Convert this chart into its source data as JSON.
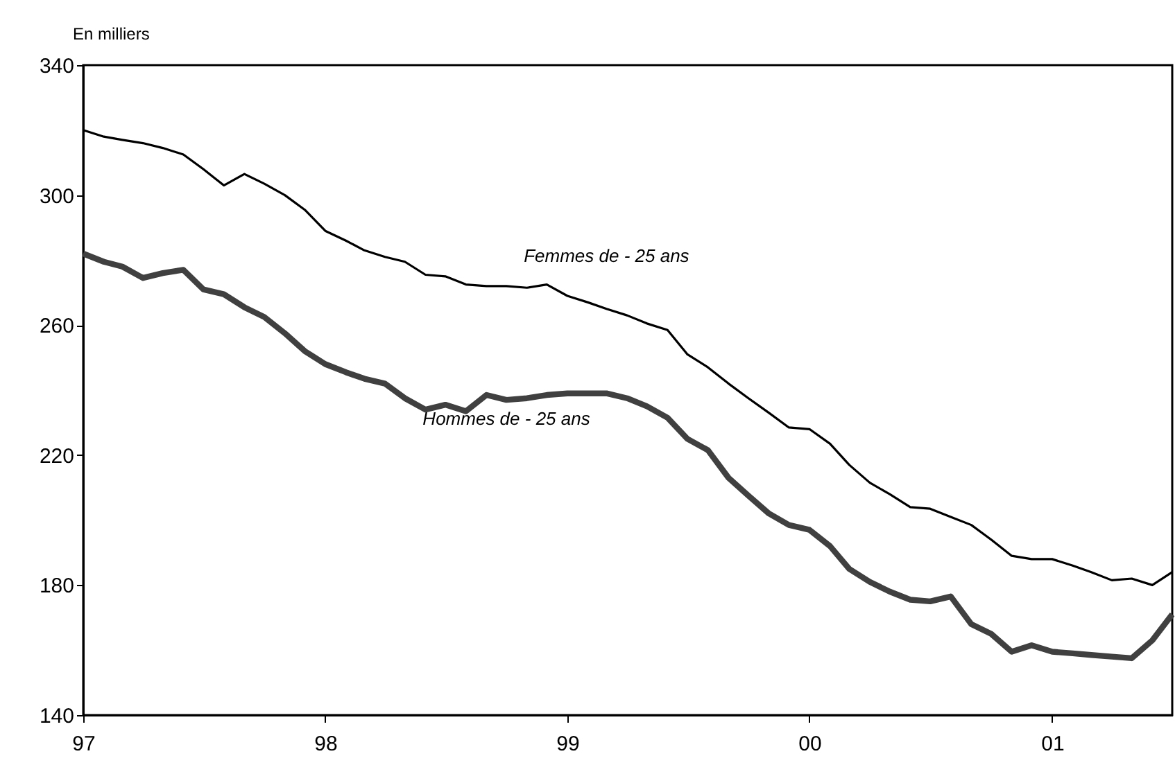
{
  "chart_data": {
    "type": "line",
    "ylabel": "En milliers",
    "x": [
      "1997-01",
      "1997-02",
      "1997-03",
      "1997-04",
      "1997-05",
      "1997-06",
      "1997-07",
      "1997-08",
      "1997-09",
      "1997-10",
      "1997-11",
      "1997-12",
      "1998-01",
      "1998-02",
      "1998-03",
      "1998-04",
      "1998-05",
      "1998-06",
      "1998-07",
      "1998-08",
      "1998-09",
      "1998-10",
      "1998-11",
      "1998-12",
      "1999-01",
      "1999-02",
      "1999-03",
      "1999-04",
      "1999-05",
      "1999-06",
      "1999-07",
      "1999-08",
      "1999-09",
      "1999-10",
      "1999-11",
      "1999-12",
      "2000-01",
      "2000-02",
      "2000-03",
      "2000-04",
      "2000-05",
      "2000-06",
      "2000-07",
      "2000-08",
      "2000-09",
      "2000-10",
      "2000-11",
      "2000-12",
      "2001-01",
      "2001-02",
      "2001-03",
      "2001-04",
      "2001-05",
      "2001-06",
      "2001-07"
    ],
    "series": [
      {
        "name": "Femmes de - 25 ans",
        "color": "#000000",
        "values": [
          320,
          318,
          317,
          316,
          314.5,
          312.5,
          308,
          303,
          306.5,
          303.5,
          300,
          295.5,
          289,
          286,
          283,
          281,
          279.5,
          275.5,
          275,
          272.5,
          272,
          272,
          271.5,
          272.5,
          269,
          267,
          265,
          263,
          260.5,
          258.5,
          251,
          247,
          242,
          237.5,
          233,
          228.5,
          228,
          223.5,
          217,
          211.5,
          208,
          204,
          203.5,
          201,
          198.5,
          194,
          189,
          188,
          188,
          186,
          184,
          181.5,
          182,
          180,
          184
        ]
      },
      {
        "name": "Hommes de - 25 ans",
        "color": "#404040",
        "values": [
          282,
          279.5,
          278,
          274.5,
          276,
          277,
          271,
          269.5,
          265.5,
          262.5,
          257.5,
          252,
          248,
          245.5,
          243.5,
          242,
          237.5,
          234,
          235.5,
          233.5,
          238.5,
          237,
          237.5,
          238.5,
          239,
          239,
          239,
          237.5,
          235,
          231.5,
          225,
          221.5,
          213,
          207.5,
          202,
          198.5,
          197,
          192,
          185,
          181,
          178,
          175.5,
          175,
          176.5,
          168,
          165,
          159.5,
          161.5,
          159.5,
          159,
          158.5,
          158,
          157.5,
          163,
          171
        ]
      }
    ],
    "xlim": [
      "1997-01",
      "2001-07"
    ],
    "xticks": [
      {
        "value": "1997-01",
        "label": "97"
      },
      {
        "value": "1998-01",
        "label": "98"
      },
      {
        "value": "1999-01",
        "label": "99"
      },
      {
        "value": "2000-01",
        "label": "00"
      },
      {
        "value": "2001-01",
        "label": "01"
      }
    ],
    "ylim": [
      140,
      340
    ],
    "yticks": [
      140,
      180,
      220,
      260,
      300,
      340
    ],
    "grid": false,
    "marker": "none",
    "line_style": "solid"
  }
}
